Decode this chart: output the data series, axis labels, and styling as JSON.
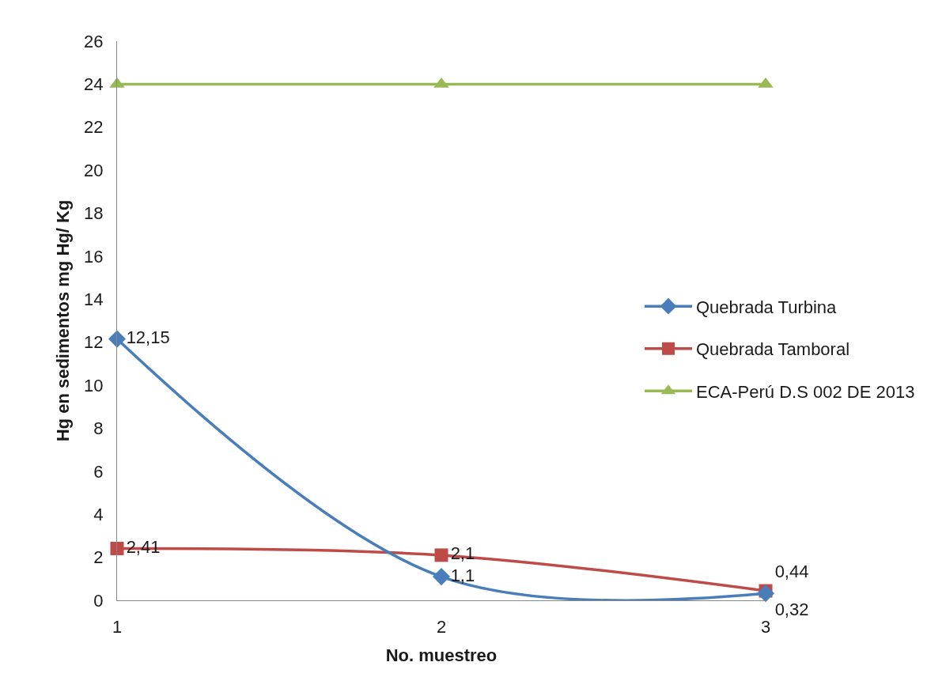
{
  "chart_data": {
    "type": "line",
    "xlabel": "No. muestreo",
    "ylabel": "Hg en sedimentos mg Hg/ Kg",
    "categories": [
      "1",
      "2",
      "3"
    ],
    "series": [
      {
        "name": "Quebrada Turbina",
        "color": "#4a7ebb",
        "marker": "diamond",
        "values": [
          12.15,
          1.1,
          0.32
        ],
        "value_labels": [
          "12,15",
          "1,1",
          "0,32"
        ]
      },
      {
        "name": "Quebrada Tamboral",
        "color": "#be4b48",
        "marker": "square",
        "values": [
          2.41,
          2.1,
          0.44
        ],
        "value_labels": [
          "2,41",
          "2,1",
          "0,44"
        ]
      },
      {
        "name": "ECA-Perú D.S 002 DE 2013",
        "color": "#98b954",
        "marker": "triangle",
        "values": [
          24,
          24,
          24
        ]
      }
    ],
    "ylim": [
      0,
      26
    ],
    "yticks": [
      0,
      2,
      4,
      6,
      8,
      10,
      12,
      14,
      16,
      18,
      20,
      22,
      24,
      26
    ],
    "grid": false,
    "legend": "right",
    "line_style": "solid"
  }
}
